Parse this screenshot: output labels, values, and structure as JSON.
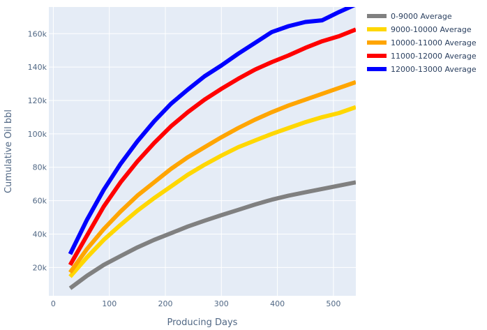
{
  "chart_data": {
    "type": "line",
    "xlabel": "Producing Days",
    "ylabel": "Cumulative Oil bbl",
    "xlim": [
      -8,
      540
    ],
    "ylim": [
      3000,
      176000
    ],
    "x_ticks": [
      0,
      100,
      200,
      300,
      400,
      500
    ],
    "y_ticks": [
      20000,
      40000,
      60000,
      80000,
      100000,
      120000,
      140000,
      160000
    ],
    "x_tick_labels": [
      "0",
      "100",
      "200",
      "300",
      "400",
      "500"
    ],
    "y_tick_labels": [
      "20k",
      "40k",
      "60k",
      "80k",
      "100k",
      "120k",
      "140k",
      "160k"
    ],
    "grid": true,
    "legend_position": "top-right",
    "x": [
      30,
      60,
      90,
      120,
      150,
      180,
      210,
      240,
      270,
      300,
      330,
      360,
      390,
      420,
      450,
      480,
      510,
      540
    ],
    "series": [
      {
        "name": "0-9000 Average",
        "color": "#808080",
        "values": [
          7500,
          15000,
          21500,
          26800,
          32000,
          36500,
          40500,
          44500,
          48000,
          51300,
          54500,
          57700,
          60600,
          63000,
          65000,
          67000,
          69000,
          71000
        ]
      },
      {
        "name": "9000-10000 Average",
        "color": "#FFD700",
        "values": [
          14500,
          26000,
          36500,
          45500,
          54000,
          61500,
          68500,
          75500,
          81500,
          87000,
          92000,
          96000,
          100000,
          103500,
          107000,
          110000,
          112500,
          116000
        ]
      },
      {
        "name": "10000-11000 Average",
        "color": "#FFA500",
        "values": [
          17000,
          31000,
          43000,
          53500,
          63000,
          71000,
          79000,
          86000,
          92000,
          98000,
          103500,
          108500,
          113000,
          117000,
          120500,
          124000,
          127500,
          131000
        ]
      },
      {
        "name": "11000-12000 Average",
        "color": "#FF0000",
        "values": [
          21500,
          39000,
          56500,
          71000,
          83500,
          94500,
          104500,
          113000,
          120500,
          127000,
          133000,
          138500,
          143000,
          147000,
          151500,
          155500,
          158500,
          162500
        ]
      },
      {
        "name": "12000-13000 Average",
        "color": "#0000FF",
        "values": [
          28000,
          48500,
          66500,
          82000,
          95500,
          107500,
          118000,
          126500,
          134500,
          141000,
          148000,
          154500,
          161000,
          164500,
          167000,
          168000,
          173000,
          177500
        ]
      }
    ]
  }
}
